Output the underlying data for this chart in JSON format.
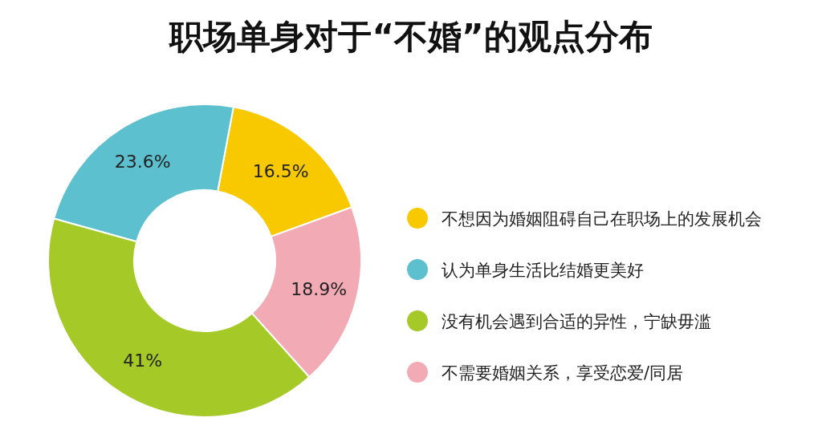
{
  "chart_data": {
    "type": "donut",
    "title": "职场单身对于“不婚”的观点分布",
    "categories": [
      "不想因为婚姻阻碍自己在职场上的发展机会",
      "认为单身生活比结婚更美好",
      "没有机会遇到合适的异性，宁缺毋滥",
      "不需要婚姻关系，享受恋爱/同居"
    ],
    "values": [
      16.5,
      23.6,
      41,
      18.9
    ],
    "value_labels": [
      "16.5%",
      "23.6%",
      "41%",
      "18.9%"
    ],
    "colors": [
      "#f8c800",
      "#5cc0cf",
      "#a5c927",
      "#f2aab5"
    ],
    "legend": "right"
  }
}
